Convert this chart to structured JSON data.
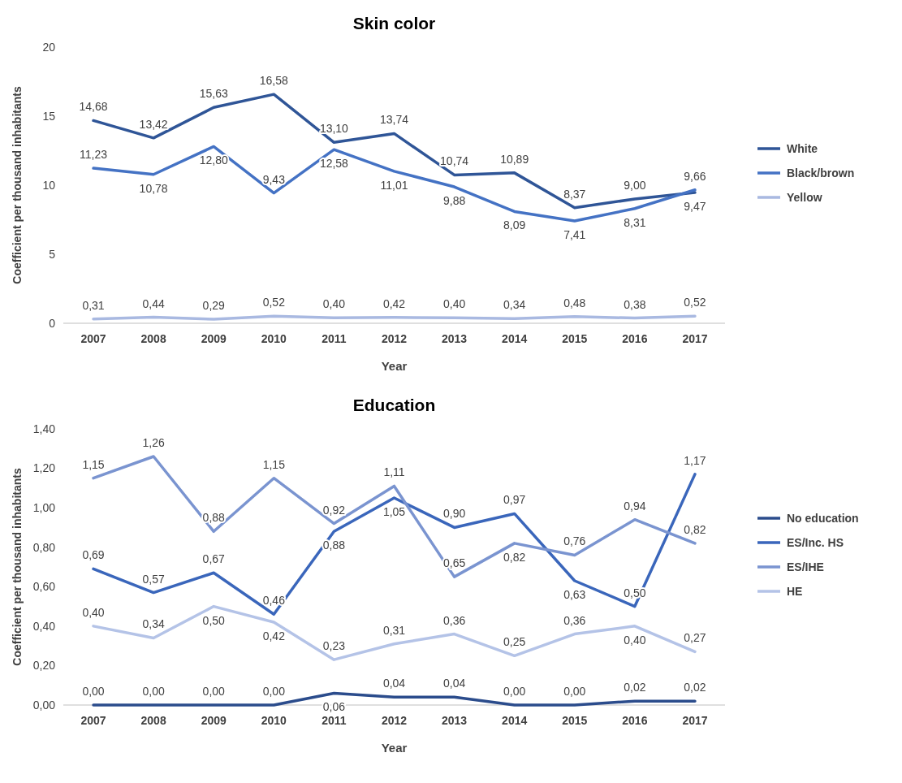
{
  "chart_data": [
    {
      "type": "line",
      "title": "Skin color",
      "xlabel": "Year",
      "ylabel": "Coefficient per thousand inhabitants",
      "categories": [
        "2007",
        "2008",
        "2009",
        "2010",
        "2011",
        "2012",
        "2013",
        "2014",
        "2015",
        "2016",
        "2017"
      ],
      "ylim": [
        0,
        20
      ],
      "yticks": [
        0,
        5,
        10,
        15,
        20
      ],
      "legend": "right",
      "grid": false,
      "series": [
        {
          "name": "White",
          "color": "#2f5597",
          "values": [
            14.68,
            13.42,
            15.63,
            16.58,
            13.1,
            13.74,
            10.74,
            10.89,
            8.37,
            9.0,
            9.47
          ],
          "value_labels": [
            "14,68",
            "13,42",
            "15,63",
            "16,58",
            "13,10",
            "13,74",
            "10,74",
            "10,89",
            "8,37",
            "9,00",
            "9,47"
          ]
        },
        {
          "name": "Black/brown",
          "color": "#4472c4",
          "values": [
            11.23,
            10.78,
            12.8,
            9.43,
            12.58,
            11.01,
            9.88,
            8.09,
            7.41,
            8.31,
            9.66
          ],
          "value_labels": [
            "11,23",
            "10,78",
            "12,80",
            "9,43",
            "12,58",
            "11,01",
            "9,88",
            "8,09",
            "7,41",
            "8,31",
            "9,66"
          ]
        },
        {
          "name": "Yellow",
          "color": "#a9b9e1",
          "values": [
            0.31,
            0.44,
            0.29,
            0.52,
            0.4,
            0.42,
            0.4,
            0.34,
            0.48,
            0.38,
            0.52
          ],
          "value_labels": [
            "0,31",
            "0,44",
            "0,29",
            "0,52",
            "0,40",
            "0,42",
            "0,40",
            "0,34",
            "0,48",
            "0,38",
            "0,52"
          ]
        }
      ]
    },
    {
      "type": "line",
      "title": "Education",
      "xlabel": "Year",
      "ylabel": "Coefficient per thousand inhabitants",
      "categories": [
        "2007",
        "2008",
        "2009",
        "2010",
        "2011",
        "2012",
        "2013",
        "2014",
        "2015",
        "2016",
        "2017"
      ],
      "ylim": [
        0,
        1.4
      ],
      "yticks": [
        {
          "value": 0,
          "label": "0,00"
        },
        {
          "value": 0.2,
          "label": "0,20"
        },
        {
          "value": 0.4,
          "label": "0,40"
        },
        {
          "value": 0.6,
          "label": "0,60"
        },
        {
          "value": 0.8,
          "label": "0,80"
        },
        {
          "value": 1.0,
          "label": "1,00"
        },
        {
          "value": 1.2,
          "label": "1,20"
        },
        {
          "value": 1.4,
          "label": "1,40"
        }
      ],
      "legend": "right",
      "grid": false,
      "series": [
        {
          "name": "No education",
          "color": "#2b4c8c",
          "values": [
            0,
            0,
            0,
            0,
            0.06,
            0.04,
            0.04,
            0,
            0,
            0.02,
            0.02
          ],
          "value_labels": [
            "0,00",
            "0,00",
            "0,00",
            "0,00",
            "0,06",
            "0,04",
            "0,04",
            "0,00",
            "0,00",
            "0,02",
            "0,02"
          ]
        },
        {
          "name": "ES/Inc. HS",
          "color": "#3a66bb",
          "values": [
            0.69,
            0.57,
            0.67,
            0.46,
            0.88,
            1.05,
            0.9,
            0.97,
            0.63,
            0.5,
            1.17
          ],
          "value_labels": [
            "0,69",
            "0,57",
            "0,67",
            "0,46",
            "0,88",
            "1,05",
            "0,90",
            "0,97",
            "0,63",
            "0,50",
            "1,17"
          ]
        },
        {
          "name": "ES/IHE",
          "color": "#7a94d0",
          "values": [
            1.15,
            1.26,
            0.88,
            1.15,
            0.92,
            1.11,
            0.65,
            0.82,
            0.76,
            0.94,
            0.82
          ],
          "value_labels": [
            "1,15",
            "1,26",
            "0,88",
            "1,15",
            "0,92",
            "1,11",
            "0,65",
            "0,82",
            "0,76",
            "0,94",
            "0,82"
          ]
        },
        {
          "name": "HE",
          "color": "#b4c3e7",
          "values": [
            0.4,
            0.34,
            0.5,
            0.42,
            0.23,
            0.31,
            0.36,
            0.25,
            0.36,
            0.4,
            0.27
          ],
          "value_labels": [
            "0,40",
            "0,34",
            "0,50",
            "0,42",
            "0,23",
            "0,31",
            "0,36",
            "0,25",
            "0,36",
            "0,40",
            "0,27"
          ]
        }
      ]
    }
  ]
}
